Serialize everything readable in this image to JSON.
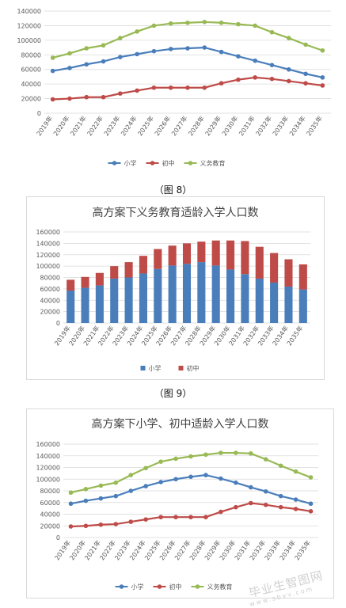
{
  "captions": {
    "fig8": "（图 8）",
    "fig9": "（图 9）"
  },
  "watermark": {
    "text": "毕业生智图网",
    "sub": "www.sbvv.com"
  },
  "chart_data": [
    {
      "type": "line",
      "title": "",
      "categories": [
        "2019年",
        "2020年",
        "2021年",
        "2022年",
        "2023年",
        "2024年",
        "2025年",
        "2026年",
        "2027年",
        "2028年",
        "2029年",
        "2030年",
        "2031年",
        "2032年",
        "2033年",
        "2034年",
        "2035年"
      ],
      "ylim": [
        0,
        140000
      ],
      "yticks": [
        0,
        20000,
        40000,
        60000,
        80000,
        100000,
        120000,
        140000
      ],
      "grid": true,
      "legend": "bottom",
      "series": [
        {
          "name": "小学",
          "color": "#4a7ebb",
          "values": [
            58000,
            62000,
            67000,
            71000,
            77000,
            81000,
            85000,
            88000,
            89000,
            90000,
            84000,
            78000,
            72000,
            66000,
            60000,
            54000,
            49000
          ]
        },
        {
          "name": "初中",
          "color": "#be4b48",
          "values": [
            19000,
            20000,
            22000,
            22000,
            27000,
            31000,
            35000,
            35000,
            35000,
            35000,
            41000,
            46000,
            49000,
            47000,
            44000,
            41000,
            38000
          ]
        },
        {
          "name": "义务教育",
          "color": "#98b954",
          "values": [
            76000,
            82000,
            89000,
            93000,
            103000,
            112000,
            120000,
            123000,
            124000,
            125000,
            124000,
            122000,
            120000,
            111000,
            103000,
            94000,
            86000
          ]
        }
      ]
    },
    {
      "type": "bar",
      "stacked": true,
      "title": "高方案下义务教育适龄入学人口数",
      "categories": [
        "2019年",
        "2020年",
        "2021年",
        "2022年",
        "2023年",
        "2024年",
        "2025年",
        "2026年",
        "2027年",
        "2028年",
        "2029年",
        "2030年",
        "2031年",
        "2032年",
        "2033年",
        "2034年",
        "2035年"
      ],
      "ylim": [
        0,
        160000
      ],
      "yticks": [
        0,
        20000,
        40000,
        60000,
        80000,
        100000,
        120000,
        140000,
        160000
      ],
      "grid": true,
      "legend": "bottom",
      "series": [
        {
          "name": "小学",
          "color": "#4a7ebb",
          "values": [
            57000,
            62000,
            66000,
            78000,
            80000,
            87000,
            95000,
            101000,
            104000,
            107000,
            101000,
            94000,
            86000,
            78000,
            71000,
            64000,
            59000
          ]
        },
        {
          "name": "初中",
          "color": "#be4b48",
          "values": [
            19000,
            19000,
            22000,
            22000,
            27000,
            31000,
            35000,
            35000,
            36000,
            36000,
            44000,
            51000,
            58000,
            56000,
            52000,
            48000,
            44000
          ]
        }
      ]
    },
    {
      "type": "line",
      "title": "高方案下小学、初中适龄入学人口数",
      "categories": [
        "2019年",
        "2020年",
        "2021年",
        "2022年",
        "2023年",
        "2024年",
        "2025年",
        "2026年",
        "2027年",
        "2028年",
        "2029年",
        "2030年",
        "2031年",
        "2032年",
        "2033年",
        "2034年",
        "2035年"
      ],
      "ylim": [
        0,
        160000
      ],
      "yticks": [
        0,
        20000,
        40000,
        60000,
        80000,
        100000,
        120000,
        140000,
        160000
      ],
      "grid": true,
      "legend": "bottom",
      "series": [
        {
          "name": "小学",
          "color": "#4a7ebb",
          "values": [
            58000,
            63000,
            67000,
            71000,
            80000,
            88000,
            95000,
            100000,
            104000,
            107000,
            101000,
            94000,
            86000,
            79000,
            71000,
            65000,
            58000
          ]
        },
        {
          "name": "初中",
          "color": "#be4b48",
          "values": [
            19000,
            20000,
            22000,
            23000,
            27000,
            31000,
            35000,
            35000,
            35000,
            35000,
            44000,
            52000,
            59000,
            56000,
            52000,
            49000,
            45000
          ]
        },
        {
          "name": "义务教育",
          "color": "#98b954",
          "values": [
            77000,
            83000,
            89000,
            94000,
            107000,
            119000,
            130000,
            135000,
            139000,
            142000,
            145000,
            145000,
            144000,
            134000,
            123000,
            113000,
            103000
          ]
        }
      ]
    }
  ]
}
